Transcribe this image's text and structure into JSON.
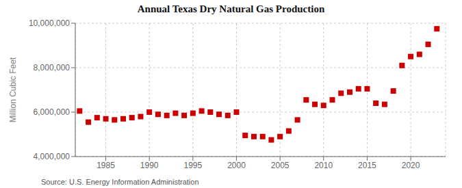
{
  "chart_data": {
    "type": "scatter",
    "title": "Annual Texas Dry Natural Gas Production",
    "ylabel": "Million Cubic Feet",
    "annotations": [
      "Source: U.S. Energy Information Administration"
    ],
    "x": [
      1982,
      1983,
      1984,
      1985,
      1986,
      1987,
      1988,
      1989,
      1990,
      1991,
      1992,
      1993,
      1994,
      1995,
      1996,
      1997,
      1998,
      1999,
      2000,
      2001,
      2002,
      2003,
      2004,
      2005,
      2006,
      2007,
      2008,
      2009,
      2010,
      2011,
      2012,
      2013,
      2014,
      2015,
      2016,
      2017,
      2018,
      2019,
      2020,
      2021,
      2022,
      2023
    ],
    "values": [
      6050000,
      5550000,
      5750000,
      5700000,
      5650000,
      5700000,
      5750000,
      5800000,
      6000000,
      5900000,
      5850000,
      5950000,
      5850000,
      5950000,
      6050000,
      6000000,
      5900000,
      5850000,
      6000000,
      4950000,
      4900000,
      4900000,
      4750000,
      4900000,
      5150000,
      5650000,
      6550000,
      6350000,
      6300000,
      6550000,
      6850000,
      6900000,
      7050000,
      7050000,
      6400000,
      6350000,
      6950000,
      8100000,
      8500000,
      8600000,
      9050000,
      9750000
    ],
    "color": "#cc0000",
    "marker": "square",
    "xlim": [
      1981.5,
      2024
    ],
    "xticks": [
      1985,
      1990,
      1995,
      2000,
      2005,
      2010,
      2015,
      2020
    ],
    "ylim": [
      4000000,
      10000000
    ],
    "yticks": [
      {
        "value": 4000000,
        "label": "4,000,000"
      },
      {
        "value": 6000000,
        "label": "6,000,000"
      },
      {
        "value": 8000000,
        "label": "8,000,000"
      },
      {
        "value": 10000000,
        "label": "10,000,000"
      }
    ],
    "grid": true
  }
}
